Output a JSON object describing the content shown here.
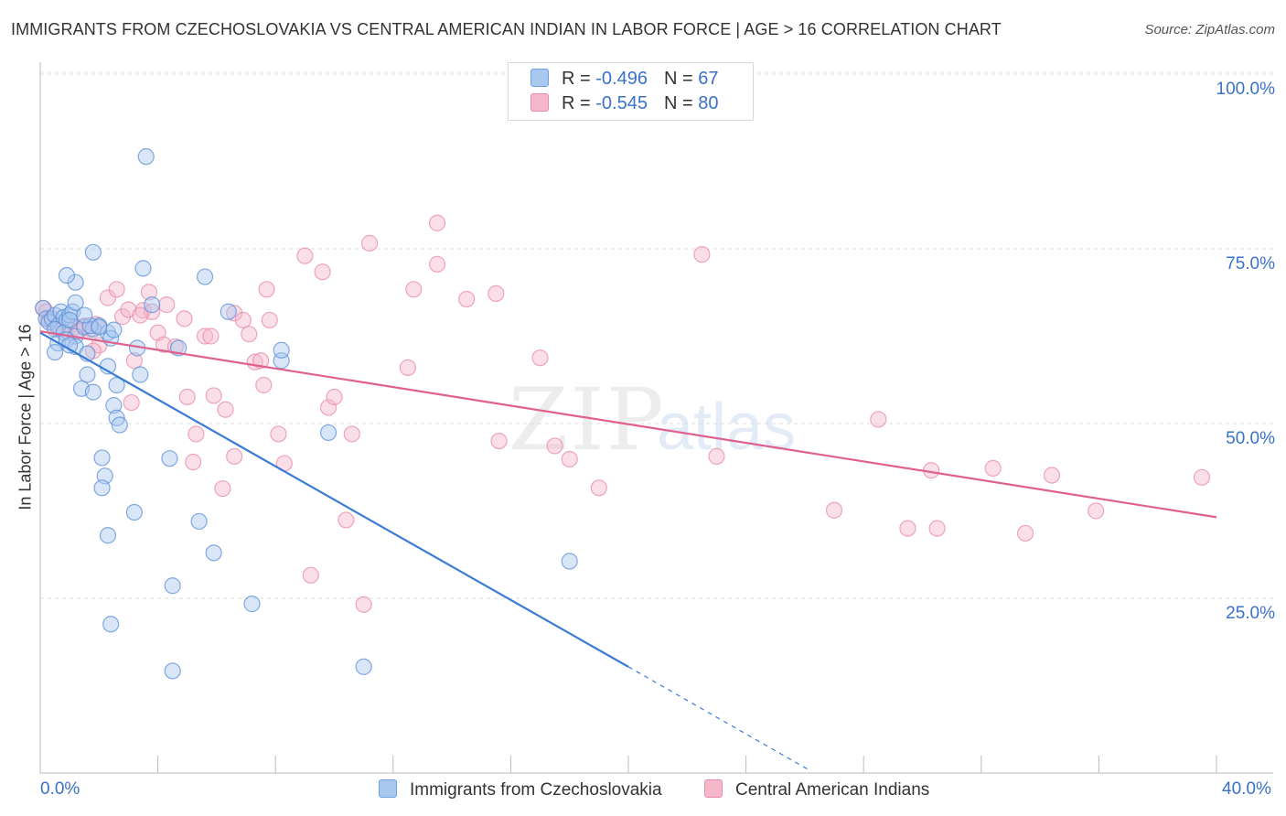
{
  "title": "IMMIGRANTS FROM CZECHOSLOVAKIA VS CENTRAL AMERICAN INDIAN IN LABOR FORCE | AGE > 16 CORRELATION CHART",
  "source": "Source: ZipAtlas.com",
  "legend": {
    "rows": [
      {
        "r_label": "R = ",
        "r_value": "-0.496",
        "n_label": "N = ",
        "n_value": "67",
        "color": "#a9c8f0"
      },
      {
        "r_label": "R = ",
        "r_value": "-0.545",
        "n_label": "N = ",
        "n_value": "80",
        "color": "#f5b8cb"
      }
    ]
  },
  "bottom_legend": [
    {
      "label": "Immigrants from Czechoslovakia",
      "color": "#a9c8f0"
    },
    {
      "label": "Central American Indians",
      "color": "#f5b8cb"
    }
  ],
  "colors": {
    "blue": "#3a7bd5",
    "pink": "#e0608e",
    "blue_fill": "#a9c8f0",
    "pink_fill": "#f5b8cb",
    "axis_text": "#3a72c8"
  },
  "chart_data": {
    "type": "scatter",
    "title": "IMMIGRANTS FROM CZECHOSLOVAKIA VS CENTRAL AMERICAN INDIAN IN LABOR FORCE | AGE > 16 CORRELATION CHART",
    "xlabel": "",
    "ylabel": "In Labor Force | Age > 16",
    "xlim": [
      0,
      40
    ],
    "ylim": [
      0,
      105
    ],
    "x_tick_labels": [
      "0.0%",
      "40.0%"
    ],
    "y_ticks": [
      25,
      50,
      75,
      100
    ],
    "y_tick_labels": [
      "25.0%",
      "50.0%",
      "75.0%",
      "100.0%"
    ],
    "grid": "horizontal dashed",
    "legend_position": "top-center",
    "series": [
      {
        "name": "Immigrants from Czechoslovakia",
        "r": -0.496,
        "n": 67,
        "points": [
          [
            0.1,
            66.5
          ],
          [
            0.2,
            65
          ],
          [
            0.3,
            64.5
          ],
          [
            0.4,
            65
          ],
          [
            0.5,
            65.5
          ],
          [
            0.6,
            64
          ],
          [
            0.7,
            66
          ],
          [
            0.8,
            65.2
          ],
          [
            0.9,
            64.8
          ],
          [
            1.0,
            65.5
          ],
          [
            1.1,
            66
          ],
          [
            0.5,
            63.5
          ],
          [
            0.8,
            63
          ],
          [
            1.2,
            62.5
          ],
          [
            1.5,
            63.8
          ],
          [
            1.8,
            63.5
          ],
          [
            2.0,
            64
          ],
          [
            2.3,
            63
          ],
          [
            0.6,
            61.5
          ],
          [
            0.5,
            60.2
          ],
          [
            0.9,
            62
          ],
          [
            1.2,
            61
          ],
          [
            1.0,
            61.2
          ],
          [
            1.6,
            60
          ],
          [
            1.2,
            67.3
          ],
          [
            1.2,
            70.2
          ],
          [
            0.9,
            71.2
          ],
          [
            1.8,
            74.5
          ],
          [
            2.3,
            58.2
          ],
          [
            3.4,
            57
          ],
          [
            1.6,
            57
          ],
          [
            1.4,
            55
          ],
          [
            1.8,
            54.5
          ],
          [
            2.6,
            55.5
          ],
          [
            3.5,
            72.2
          ],
          [
            5.6,
            71
          ],
          [
            3.6,
            88.2
          ],
          [
            2.5,
            52.6
          ],
          [
            2.6,
            50.8
          ],
          [
            2.7,
            49.8
          ],
          [
            2.1,
            45.1
          ],
          [
            2.2,
            42.5
          ],
          [
            2.1,
            40.8
          ],
          [
            3.2,
            37.3
          ],
          [
            2.3,
            34
          ],
          [
            4.4,
            45
          ],
          [
            5.4,
            36
          ],
          [
            5.9,
            31.5
          ],
          [
            4.5,
            26.8
          ],
          [
            7.2,
            24.2
          ],
          [
            2.4,
            21.3
          ],
          [
            4.5,
            14.6
          ],
          [
            11.0,
            15.2
          ],
          [
            18.0,
            30.3
          ],
          [
            9.8,
            48.7
          ],
          [
            8.2,
            59
          ],
          [
            8.2,
            60.5
          ],
          [
            4.7,
            60.8
          ],
          [
            3.3,
            60.8
          ],
          [
            6.4,
            66
          ],
          [
            3.8,
            67
          ],
          [
            1.7,
            64
          ],
          [
            2.0,
            63.8
          ],
          [
            2.4,
            62.2
          ],
          [
            2.5,
            63.4
          ],
          [
            1.5,
            65.5
          ],
          [
            1.0,
            64.8
          ]
        ],
        "trend": {
          "x0": 0,
          "y0": 63,
          "x1": 20.0,
          "y1": 15.2,
          "dash_x1": 26.2,
          "dash_y1": 0.3
        }
      },
      {
        "name": "Central American Indians",
        "r": -0.545,
        "n": 80,
        "points": [
          [
            0.1,
            66.5
          ],
          [
            0.2,
            66
          ],
          [
            0.3,
            65
          ],
          [
            0.4,
            64.5
          ],
          [
            0.6,
            63.5
          ],
          [
            0.8,
            63
          ],
          [
            1.0,
            64
          ],
          [
            1.2,
            63.8
          ],
          [
            1.3,
            63.2
          ],
          [
            1.5,
            64
          ],
          [
            1.7,
            63.5
          ],
          [
            1.9,
            64.2
          ],
          [
            2.0,
            61.2
          ],
          [
            2.3,
            68
          ],
          [
            2.6,
            69.2
          ],
          [
            2.8,
            65.3
          ],
          [
            3.0,
            66.3
          ],
          [
            3.2,
            59
          ],
          [
            3.1,
            53
          ],
          [
            3.5,
            66.2
          ],
          [
            3.7,
            68.8
          ],
          [
            3.8,
            66
          ],
          [
            4.0,
            63
          ],
          [
            4.2,
            61.3
          ],
          [
            4.3,
            67
          ],
          [
            4.6,
            61
          ],
          [
            4.9,
            65
          ],
          [
            5.0,
            53.8
          ],
          [
            5.2,
            44.5
          ],
          [
            5.3,
            48.5
          ],
          [
            5.6,
            62.5
          ],
          [
            5.8,
            62.5
          ],
          [
            5.9,
            54
          ],
          [
            6.2,
            40.7
          ],
          [
            6.3,
            52
          ],
          [
            6.6,
            65.8
          ],
          [
            6.6,
            45.3
          ],
          [
            6.9,
            64.8
          ],
          [
            7.1,
            62.8
          ],
          [
            7.3,
            58.8
          ],
          [
            7.5,
            59
          ],
          [
            7.6,
            55.5
          ],
          [
            7.7,
            69.2
          ],
          [
            7.8,
            64.8
          ],
          [
            8.1,
            48.5
          ],
          [
            8.3,
            44.3
          ],
          [
            9.0,
            74
          ],
          [
            9.2,
            28.3
          ],
          [
            9.6,
            71.7
          ],
          [
            9.8,
            52.3
          ],
          [
            10.0,
            53.8
          ],
          [
            10.4,
            36.2
          ],
          [
            10.6,
            48.5
          ],
          [
            11.0,
            24.1
          ],
          [
            11.2,
            75.8
          ],
          [
            12.5,
            58
          ],
          [
            12.7,
            69.2
          ],
          [
            13.5,
            72.8
          ],
          [
            13.5,
            78.7
          ],
          [
            14.5,
            67.8
          ],
          [
            15.5,
            68.6
          ],
          [
            15.6,
            47.5
          ],
          [
            17.0,
            59.4
          ],
          [
            17.5,
            46.8
          ],
          [
            18.0,
            44.9
          ],
          [
            19.0,
            40.8
          ],
          [
            22.5,
            74.2
          ],
          [
            23.0,
            45.3
          ],
          [
            27.0,
            37.6
          ],
          [
            28.5,
            50.6
          ],
          [
            29.5,
            35
          ],
          [
            30.5,
            35
          ],
          [
            30.3,
            43.3
          ],
          [
            32.4,
            43.6
          ],
          [
            33.5,
            34.3
          ],
          [
            34.4,
            42.6
          ],
          [
            35.9,
            37.5
          ],
          [
            39.5,
            42.3
          ],
          [
            3.4,
            65.5
          ],
          [
            1.8,
            60.4
          ]
        ],
        "trend": {
          "x0": 0,
          "y0": 63.2,
          "x1": 40,
          "y1": 36.6
        }
      }
    ]
  },
  "ylabel": "In Labor Force | Age > 16",
  "watermark": {
    "zip": "ZIP",
    "atlas": "atlas"
  }
}
